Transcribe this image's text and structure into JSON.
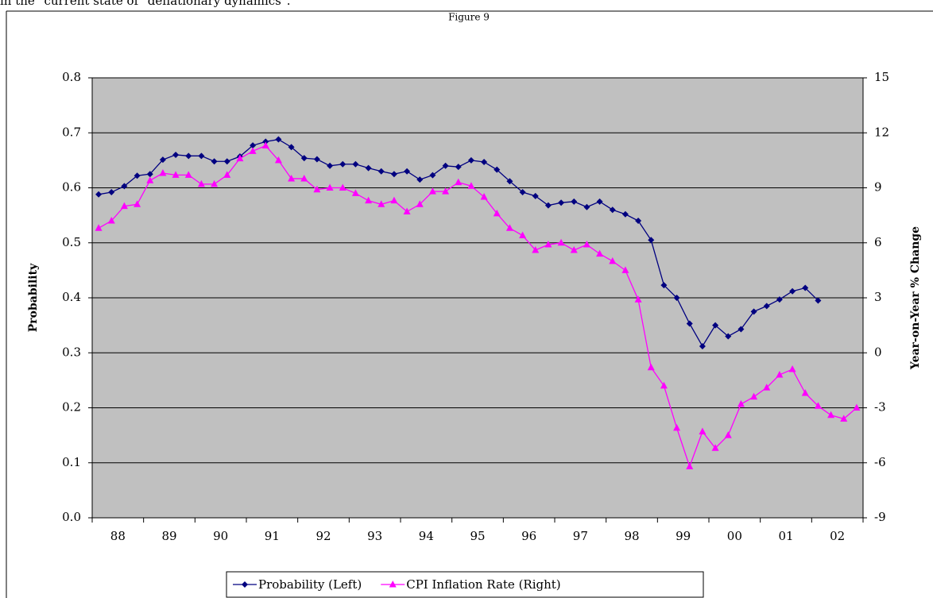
{
  "header_text": "in the \"current state of \"deflationary dynamics\".",
  "chart_data": {
    "type": "line",
    "title": "Figure 9",
    "y_label": "Probability",
    "y2_label": "Year-on-Year % Change",
    "categories": [
      null,
      "88",
      null,
      null,
      null,
      "89",
      null,
      null,
      null,
      "90",
      null,
      null,
      null,
      "91",
      null,
      null,
      null,
      "92",
      null,
      null,
      null,
      "93",
      null,
      null,
      null,
      "94",
      null,
      null,
      null,
      "95",
      null,
      null,
      null,
      "96",
      null,
      null,
      null,
      "97",
      null,
      null,
      null,
      "98",
      null,
      null,
      null,
      "99",
      null,
      null,
      null,
      "00",
      null,
      null,
      null,
      "01",
      null,
      null,
      null,
      "02",
      null,
      null
    ],
    "series": [
      {
        "name": "Probability (Left)",
        "color": "#000080",
        "marker": "diamond",
        "values": [
          0.588,
          0.592,
          0.603,
          0.622,
          0.625,
          0.651,
          0.66,
          0.658,
          0.658,
          0.648,
          0.648,
          0.657,
          0.677,
          0.684,
          0.688,
          0.674,
          0.654,
          0.652,
          0.64,
          0.643,
          0.643,
          0.636,
          0.63,
          0.625,
          0.63,
          0.615,
          0.623,
          0.64,
          0.638,
          0.65,
          0.647,
          0.633,
          0.612,
          0.592,
          0.585,
          0.568,
          0.573,
          0.575,
          0.565,
          0.575,
          0.56,
          0.552,
          0.54,
          0.505,
          0.423,
          0.4,
          0.353,
          0.312,
          0.35,
          0.33,
          0.343,
          0.375,
          0.385,
          0.397,
          0.412,
          0.418,
          0.395,
          null,
          null,
          null
        ]
      },
      {
        "name": "CPI Inflation Rate (Right)",
        "color": "#ff00ff",
        "marker": "triangle",
        "axis": "y2",
        "values": [
          6.8,
          7.2,
          8.0,
          8.1,
          9.4,
          9.8,
          9.7,
          9.7,
          9.2,
          9.2,
          9.7,
          10.6,
          11.0,
          11.3,
          10.5,
          9.5,
          9.5,
          8.9,
          9.0,
          9.0,
          8.7,
          8.3,
          8.1,
          8.3,
          7.7,
          8.1,
          8.8,
          8.8,
          9.3,
          9.1,
          8.5,
          7.6,
          6.8,
          6.4,
          5.6,
          5.9,
          6.0,
          5.6,
          5.9,
          5.4,
          5.0,
          4.5,
          2.9,
          -0.8,
          -1.8,
          -4.1,
          -6.2,
          -4.3,
          -5.2,
          -4.5,
          -2.8,
          -2.4,
          -1.9,
          -1.2,
          -0.9,
          -2.2,
          -2.9,
          -3.4,
          -3.6,
          -3.0
        ]
      }
    ],
    "ylim": [
      0,
      0.8
    ],
    "yticks": [
      {
        "value": 0,
        "label": "0.0"
      },
      0.1,
      0.2,
      0.3,
      0.4,
      0.5,
      0.6,
      0.7,
      0.8
    ],
    "y2lim": [
      -9,
      15
    ],
    "y2ticks": [
      -9,
      -6,
      -3,
      0,
      3,
      6,
      9,
      12,
      15
    ],
    "grid": true,
    "legend": "bottom",
    "plot_background": "#c0c0c0"
  }
}
